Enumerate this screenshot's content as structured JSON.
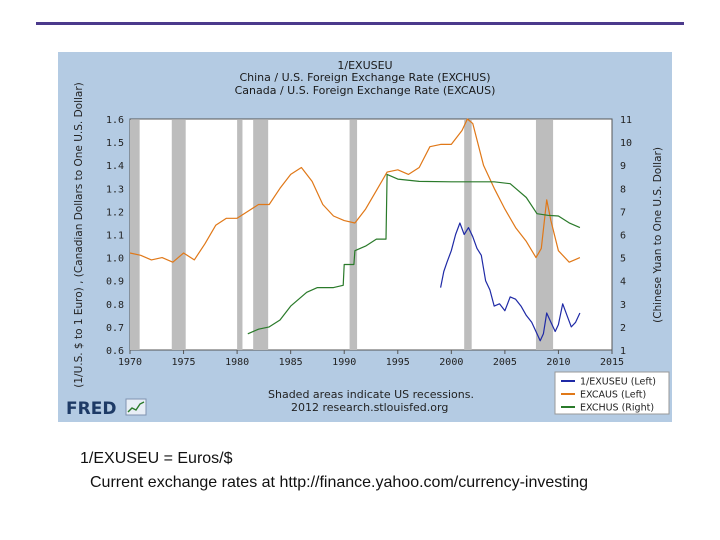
{
  "caption": {
    "line1": "1/EXUSEU = Euros/$",
    "line2": "Current exchange rates at http://finance.yahoo.com/currency-investing"
  },
  "chart_data": {
    "type": "line",
    "title": "1/EXUSEU",
    "subtitle_lines": [
      "China / U.S. Foreign Exchange Rate (EXCHUS)",
      "Canada / U.S. Foreign Exchange Rate (EXCAUS)"
    ],
    "ylabel_left": "(1/U.S. $ to 1 Euro) , (Canadian Dollars to One U.S. Dollar)",
    "ylabel_right": "(Chinese Yuan to One U.S. Dollar)",
    "xlim": [
      1970,
      2015
    ],
    "ylim_left": [
      0.6,
      1.6
    ],
    "ylim_right": [
      1,
      11
    ],
    "x_ticks": [
      "1970",
      "1975",
      "1980",
      "1985",
      "1990",
      "1995",
      "2000",
      "2005",
      "2010",
      "2015"
    ],
    "y_ticks_left": [
      "1.6",
      "1.5",
      "1.4",
      "1.3",
      "1.2",
      "1.1",
      "1.0",
      "0.9",
      "0.8",
      "0.7",
      "0.6"
    ],
    "y_ticks_right": [
      "11",
      "10",
      "9",
      "8",
      "7",
      "6",
      "5",
      "4",
      "3",
      "2",
      "1"
    ],
    "recessions": [
      [
        1969.9,
        1970.9
      ],
      [
        1973.9,
        1975.2
      ],
      [
        1980.0,
        1980.5
      ],
      [
        1981.5,
        1982.9
      ],
      [
        1990.5,
        1991.2
      ],
      [
        2001.2,
        2001.9
      ],
      [
        2007.9,
        2009.5
      ]
    ],
    "series": [
      {
        "name": "1/EXUSEU (Left)",
        "axis": "left",
        "color": "#1f2aa6",
        "x": [
          1999.0,
          1999.3,
          1999.6,
          2000.0,
          2000.4,
          2000.8,
          2001.2,
          2001.6,
          2002.0,
          2002.4,
          2002.8,
          2003.2,
          2003.6,
          2004.0,
          2004.5,
          2005.0,
          2005.5,
          2006.0,
          2006.5,
          2007.0,
          2007.5,
          2008.0,
          2008.3,
          2008.6,
          2008.9,
          2009.3,
          2009.7,
          2010.0,
          2010.4,
          2010.8,
          2011.2,
          2011.6,
          2012.0
        ],
        "y": [
          0.87,
          0.94,
          0.98,
          1.03,
          1.1,
          1.15,
          1.1,
          1.13,
          1.09,
          1.04,
          1.01,
          0.9,
          0.86,
          0.79,
          0.8,
          0.77,
          0.83,
          0.82,
          0.79,
          0.75,
          0.72,
          0.67,
          0.64,
          0.67,
          0.76,
          0.72,
          0.68,
          0.71,
          0.8,
          0.75,
          0.7,
          0.72,
          0.76
        ]
      },
      {
        "name": "EXCAUS (Left)",
        "axis": "left",
        "color": "#e07818",
        "x": [
          1970,
          1971,
          1972,
          1973,
          1974,
          1975,
          1976,
          1977,
          1978,
          1979,
          1980,
          1981,
          1982,
          1983,
          1984,
          1985,
          1986,
          1987,
          1988,
          1989,
          1990,
          1991,
          1992,
          1993,
          1994,
          1995,
          1996,
          1997,
          1998,
          1999,
          2000,
          2001,
          2001.5,
          2002,
          2003,
          2004,
          2005,
          2006,
          2007,
          2007.9,
          2008.4,
          2008.9,
          2009.3,
          2010,
          2011,
          2011.5,
          2012
        ],
        "y": [
          1.02,
          1.01,
          0.99,
          1.0,
          0.98,
          1.02,
          0.99,
          1.06,
          1.14,
          1.17,
          1.17,
          1.2,
          1.23,
          1.23,
          1.3,
          1.36,
          1.39,
          1.33,
          1.23,
          1.18,
          1.16,
          1.15,
          1.21,
          1.29,
          1.37,
          1.38,
          1.36,
          1.39,
          1.48,
          1.49,
          1.49,
          1.55,
          1.6,
          1.58,
          1.4,
          1.3,
          1.21,
          1.13,
          1.07,
          1.0,
          1.04,
          1.25,
          1.16,
          1.03,
          0.98,
          0.99,
          1.0
        ]
      },
      {
        "name": "EXCHUS (Right)",
        "axis": "right",
        "color": "#2a7a2a",
        "x": [
          1981.0,
          1982.0,
          1983.0,
          1984.0,
          1985.0,
          1986.5,
          1987.5,
          1989.0,
          1989.9,
          1990.0,
          1990.9,
          1991.0,
          1992.0,
          1993.0,
          1993.9,
          1994.0,
          1995.0,
          1997.0,
          2000.0,
          2004.0,
          2005.5,
          2006.0,
          2007.0,
          2008.0,
          2009.0,
          2010.0,
          2011.0,
          2012.0
        ],
        "y": [
          1.7,
          1.9,
          2.0,
          2.3,
          2.9,
          3.5,
          3.7,
          3.7,
          3.8,
          4.7,
          4.7,
          5.3,
          5.5,
          5.8,
          5.8,
          8.6,
          8.4,
          8.3,
          8.28,
          8.28,
          8.2,
          8.0,
          7.6,
          6.9,
          6.83,
          6.8,
          6.5,
          6.3
        ]
      }
    ],
    "shading_note": "Shaded areas indicate US recessions.",
    "source_note": "2012 research.stlouisfed.org",
    "brand": "FRED"
  }
}
